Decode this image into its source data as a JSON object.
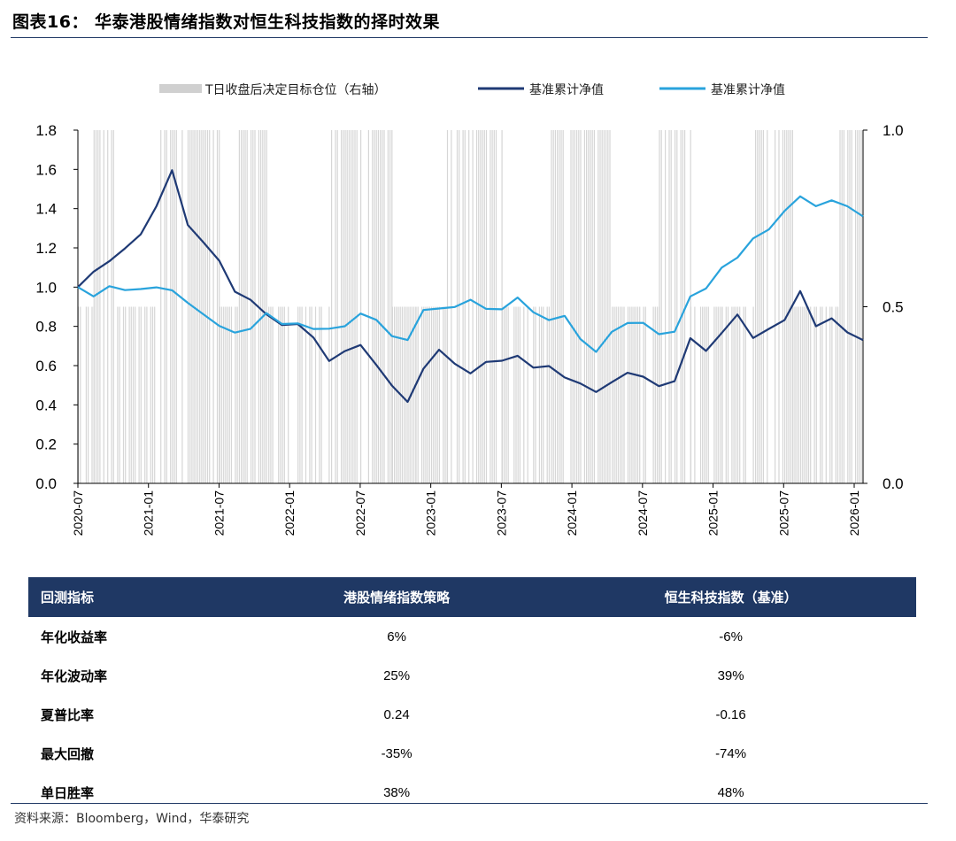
{
  "header": {
    "title": "图表16： 华泰港股情绪指数对恒生科技指数的择时效果"
  },
  "chart_data": {
    "type": "line",
    "legend": [
      "T日收盘后决定目标仓位（右轴）",
      "基准累计净值",
      "基准累计净值"
    ],
    "y_left": {
      "range": [
        0,
        1.8
      ],
      "ticks": [
        "0.0",
        "0.2",
        "0.4",
        "0.6",
        "0.8",
        "1.0",
        "1.2",
        "1.4",
        "1.6",
        "1.8"
      ]
    },
    "y_right": {
      "range": [
        0,
        1.0
      ],
      "ticks": [
        "0.0",
        "0.5",
        "1.0"
      ]
    },
    "x_ticks": [
      "2020-07",
      "2021-01",
      "2021-07",
      "2022-01",
      "2022-07",
      "2023-01",
      "2023-07",
      "2024-01",
      "2024-07",
      "2025-01",
      "2025-07",
      "2026-01"
    ],
    "series": [
      {
        "name": "基准累计净值",
        "color": "#1f3a75",
        "values": [
          1.0,
          1.06,
          1.12,
          1.18,
          1.28,
          1.42,
          1.6,
          1.3,
          1.22,
          1.12,
          0.98,
          0.94,
          0.85,
          0.82,
          0.8,
          0.74,
          0.62,
          0.68,
          0.7,
          0.62,
          0.5,
          0.42,
          0.6,
          0.68,
          0.62,
          0.58,
          0.6,
          0.62,
          0.66,
          0.6,
          0.58,
          0.55,
          0.5,
          0.46,
          0.52,
          0.55,
          0.56,
          0.51,
          0.54,
          0.73,
          0.66,
          0.76,
          0.88,
          0.76,
          0.8,
          0.84,
          0.96,
          0.82,
          0.86,
          0.78,
          0.73
        ]
      },
      {
        "name": "基准累计净值",
        "color": "#29a3dc",
        "values": [
          1.0,
          0.95,
          1.0,
          1.0,
          1.0,
          1.0,
          1.0,
          0.92,
          0.88,
          0.8,
          0.76,
          0.78,
          0.85,
          0.82,
          0.8,
          0.78,
          0.78,
          0.82,
          0.88,
          0.84,
          0.75,
          0.72,
          0.88,
          0.88,
          0.88,
          0.92,
          0.9,
          0.9,
          0.94,
          0.88,
          0.82,
          0.86,
          0.74,
          0.68,
          0.78,
          0.8,
          0.8,
          0.78,
          0.78,
          0.96,
          0.98,
          1.08,
          1.14,
          1.26,
          1.3,
          1.38,
          1.46,
          1.4,
          1.44,
          1.42,
          1.36
        ]
      }
    ],
    "position_bars": "gray vertical bars, target position 0 / 0.5 / 1.0 on right axis"
  },
  "table": {
    "headers": [
      "回测指标",
      "港股情绪指数策略",
      "恒生科技指数（基准）"
    ],
    "rows": [
      [
        "年化收益率",
        "6%",
        "-6%"
      ],
      [
        "年化波动率",
        "25%",
        "39%"
      ],
      [
        "夏普比率",
        "0.24",
        "-0.16"
      ],
      [
        "最大回撤",
        "-35%",
        "-74%"
      ],
      [
        "单日胜率",
        "38%",
        "48%"
      ]
    ]
  },
  "source": "资料来源：Bloomberg，Wind，华泰研究"
}
